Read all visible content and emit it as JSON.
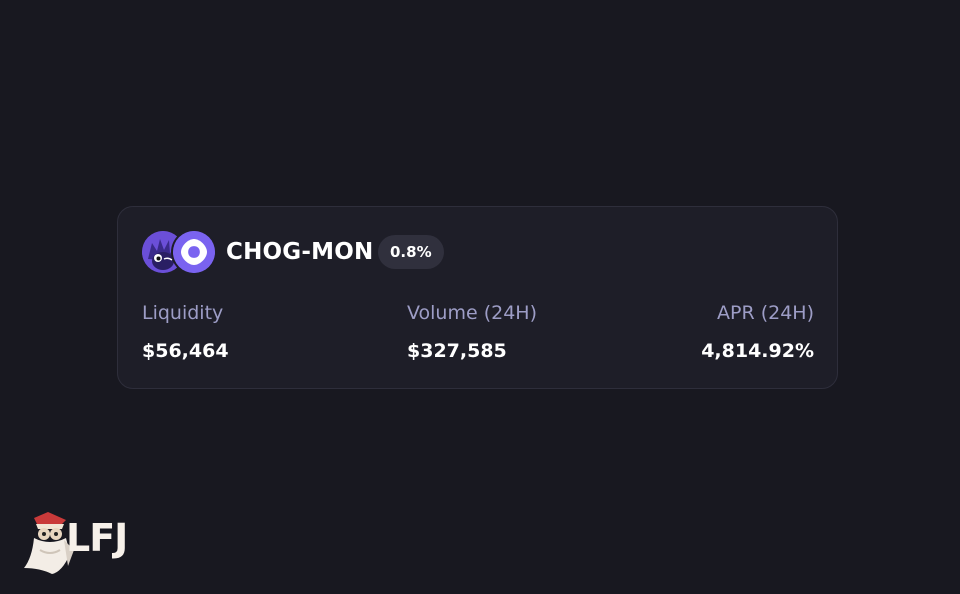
{
  "pool": {
    "pair_name": "CHOG-MON",
    "fee_tier": "0.8%",
    "tokens": [
      {
        "symbol": "CHOG",
        "icon": "chog-mascot-icon",
        "color": "#6b4fd8"
      },
      {
        "symbol": "MON",
        "icon": "monad-logo-icon",
        "color": "#7a63f0"
      }
    ],
    "stats": {
      "liquidity_label": "Liquidity",
      "liquidity_value": "$56,464",
      "volume_label": "Volume (24H)",
      "volume_value": "$327,585",
      "apr_label": "APR (24H)",
      "apr_value": "4,814.92%"
    }
  },
  "brand": {
    "logo_text": "LFJ",
    "mascot": "wizard-mascot-icon"
  },
  "colors": {
    "background": "#181820",
    "card": "#1e1e28",
    "label": "#9d9dc6",
    "badge": "#30303d"
  }
}
